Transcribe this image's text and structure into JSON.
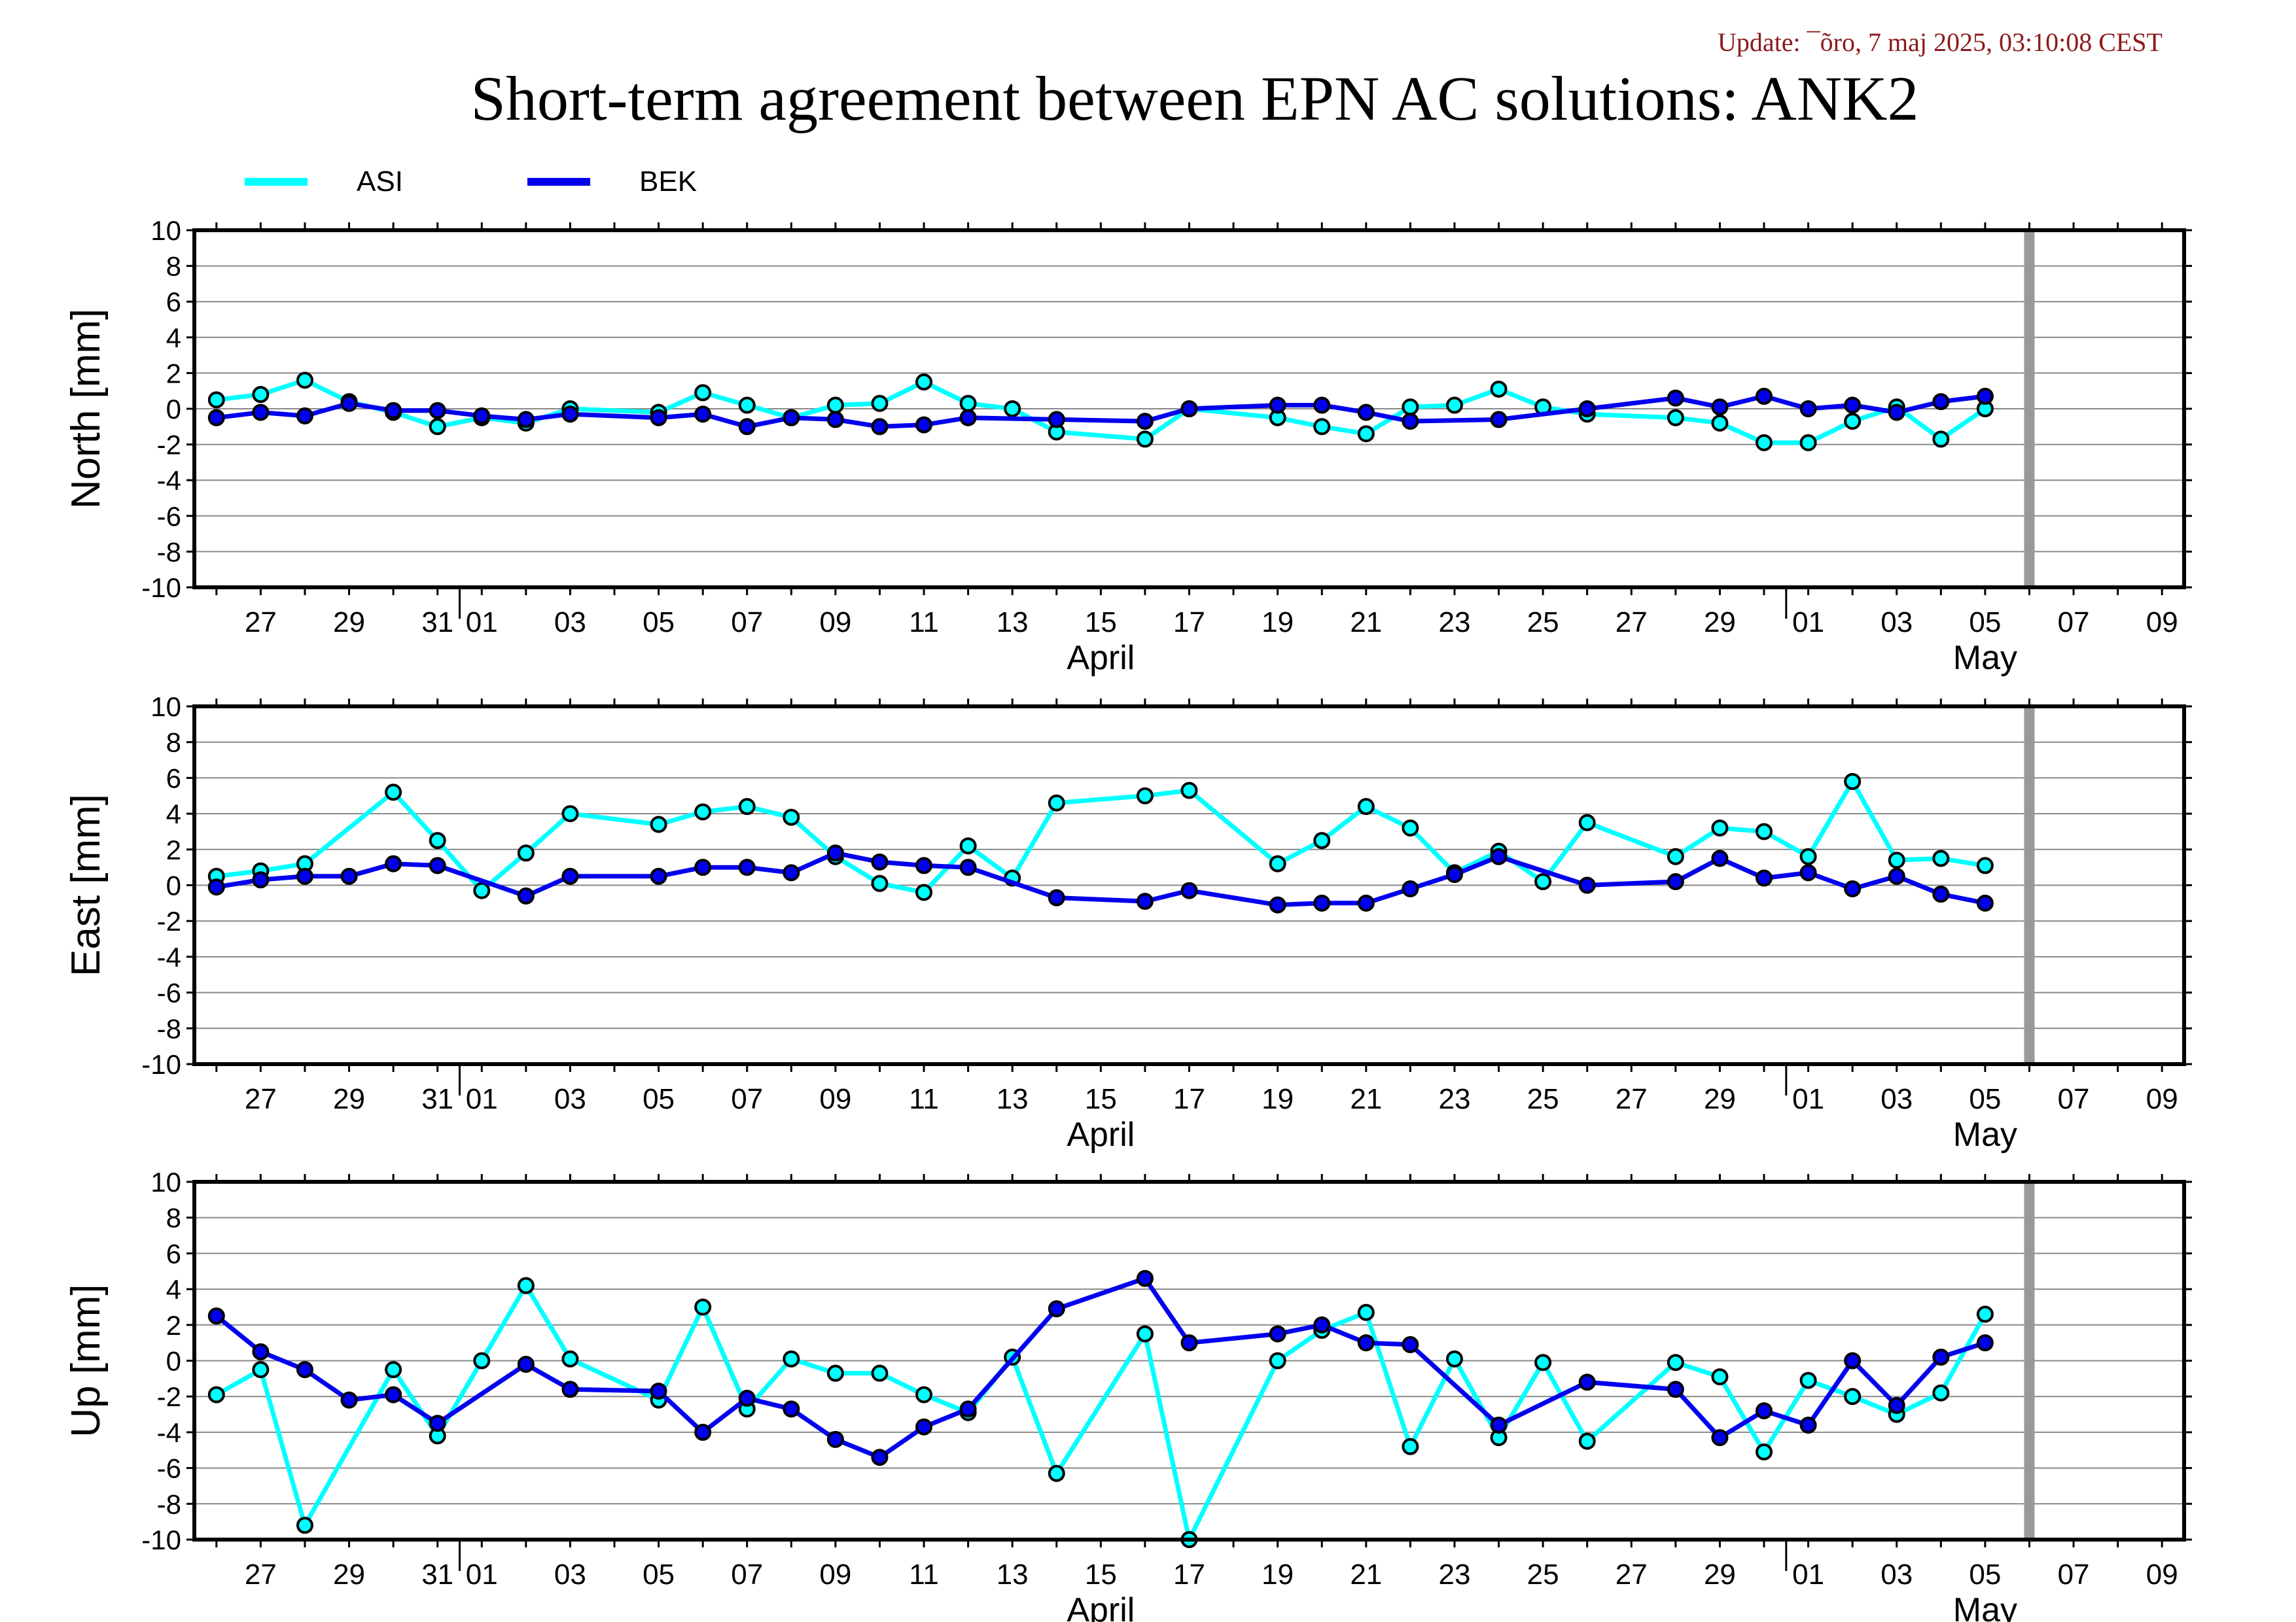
{
  "header": {
    "update": "Update: ¯õro, 7 maj 2025, 03:10:08 CEST",
    "title": "Short-term agreement between EPN AC solutions: ANK2"
  },
  "legend": [
    {
      "name": "ASI",
      "color": "#00ffff"
    },
    {
      "name": "BEK",
      "color": "#0000ee"
    }
  ],
  "colors": {
    "update_text": "#8b1a1a",
    "gray_marker": "#999999",
    "grid": "#888888"
  },
  "chart_data": [
    {
      "type": "line",
      "ylabel": "North [mm]",
      "ylim": [
        -10,
        10
      ],
      "yticks": [
        10,
        8,
        6,
        4,
        2,
        0,
        -2,
        -4,
        -6,
        -8,
        -10
      ],
      "xlim": [
        "2025-03-25T12:00",
        "2025-05-09T12:00"
      ],
      "gray_marker": "2025-05-06",
      "series": [
        {
          "name": "ASI",
          "x": [
            "2025-03-26",
            "2025-03-27",
            "2025-03-28",
            "2025-03-29",
            "2025-03-30",
            "2025-03-31",
            "2025-04-01",
            "2025-04-02",
            "2025-04-03",
            "2025-04-05",
            "2025-04-06",
            "2025-04-07",
            "2025-04-08",
            "2025-04-09",
            "2025-04-10",
            "2025-04-11",
            "2025-04-12",
            "2025-04-13",
            "2025-04-14",
            "2025-04-16",
            "2025-04-17",
            "2025-04-19",
            "2025-04-20",
            "2025-04-21",
            "2025-04-22",
            "2025-04-23",
            "2025-04-24",
            "2025-04-25",
            "2025-04-26",
            "2025-04-28",
            "2025-04-29",
            "2025-04-30",
            "2025-05-01",
            "2025-05-02",
            "2025-05-03",
            "2025-05-04",
            "2025-05-05"
          ],
          "values": [
            0.5,
            0.8,
            1.6,
            0.4,
            -0.2,
            -1.0,
            -0.5,
            -0.8,
            0.0,
            -0.2,
            0.9,
            0.2,
            -0.5,
            0.2,
            0.3,
            1.5,
            0.3,
            0.0,
            -1.3,
            -1.7,
            0.0,
            -0.5,
            -1.0,
            -1.4,
            0.1,
            0.2,
            1.1,
            0.1,
            -0.3,
            -0.5,
            -0.8,
            -1.9,
            -1.9,
            -0.7,
            0.1,
            -1.7,
            0.0
          ]
        },
        {
          "name": "BEK",
          "x": [
            "2025-03-26",
            "2025-03-27",
            "2025-03-28",
            "2025-03-29",
            "2025-03-30",
            "2025-03-31",
            "2025-04-01",
            "2025-04-02",
            "2025-04-03",
            "2025-04-05",
            "2025-04-06",
            "2025-04-07",
            "2025-04-08",
            "2025-04-09",
            "2025-04-10",
            "2025-04-11",
            "2025-04-12",
            "2025-04-14",
            "2025-04-16",
            "2025-04-17",
            "2025-04-19",
            "2025-04-20",
            "2025-04-21",
            "2025-04-22",
            "2025-04-24",
            "2025-04-26",
            "2025-04-28",
            "2025-04-29",
            "2025-04-30",
            "2025-05-01",
            "2025-05-02",
            "2025-05-03",
            "2025-05-04",
            "2025-05-05"
          ],
          "values": [
            -0.5,
            -0.2,
            -0.4,
            0.3,
            -0.1,
            -0.1,
            -0.4,
            -0.6,
            -0.3,
            -0.5,
            -0.3,
            -1.0,
            -0.5,
            -0.6,
            -1.0,
            -0.9,
            -0.5,
            -0.6,
            -0.7,
            0.0,
            0.2,
            0.2,
            -0.2,
            -0.7,
            -0.6,
            0.0,
            0.6,
            0.1,
            0.7,
            0.0,
            0.2,
            -0.2,
            0.4,
            0.7
          ]
        }
      ]
    },
    {
      "type": "line",
      "ylabel": "East [mm]",
      "ylim": [
        -10,
        10
      ],
      "yticks": [
        10,
        8,
        6,
        4,
        2,
        0,
        -2,
        -4,
        -6,
        -8,
        -10
      ],
      "xlim": [
        "2025-03-25T12:00",
        "2025-05-09T12:00"
      ],
      "gray_marker": "2025-05-06",
      "series": [
        {
          "name": "ASI",
          "x": [
            "2025-03-26",
            "2025-03-27",
            "2025-03-28",
            "2025-03-30",
            "2025-03-31",
            "2025-04-01",
            "2025-04-02",
            "2025-04-03",
            "2025-04-05",
            "2025-04-06",
            "2025-04-07",
            "2025-04-08",
            "2025-04-09",
            "2025-04-10",
            "2025-04-11",
            "2025-04-12",
            "2025-04-13",
            "2025-04-14",
            "2025-04-16",
            "2025-04-17",
            "2025-04-19",
            "2025-04-20",
            "2025-04-21",
            "2025-04-22",
            "2025-04-23",
            "2025-04-24",
            "2025-04-25",
            "2025-04-26",
            "2025-04-28",
            "2025-04-29",
            "2025-04-30",
            "2025-05-01",
            "2025-05-02",
            "2025-05-03",
            "2025-05-04",
            "2025-05-05"
          ],
          "values": [
            0.5,
            0.8,
            1.2,
            5.2,
            2.5,
            -0.3,
            1.8,
            4.0,
            3.4,
            4.1,
            4.4,
            3.8,
            1.6,
            0.1,
            -0.4,
            2.2,
            0.4,
            4.6,
            5.0,
            5.3,
            1.2,
            2.5,
            4.4,
            3.2,
            0.7,
            1.9,
            0.2,
            3.5,
            1.6,
            3.2,
            3.0,
            1.6,
            5.8,
            1.4,
            1.5,
            1.1
          ]
        },
        {
          "name": "BEK",
          "x": [
            "2025-03-26",
            "2025-03-27",
            "2025-03-28",
            "2025-03-29",
            "2025-03-30",
            "2025-03-31",
            "2025-04-02",
            "2025-04-03",
            "2025-04-05",
            "2025-04-06",
            "2025-04-07",
            "2025-04-08",
            "2025-04-09",
            "2025-04-10",
            "2025-04-11",
            "2025-04-12",
            "2025-04-14",
            "2025-04-16",
            "2025-04-17",
            "2025-04-19",
            "2025-04-20",
            "2025-04-21",
            "2025-04-22",
            "2025-04-23",
            "2025-04-24",
            "2025-04-26",
            "2025-04-28",
            "2025-04-29",
            "2025-04-30",
            "2025-05-01",
            "2025-05-02",
            "2025-05-03",
            "2025-05-04",
            "2025-05-05"
          ],
          "values": [
            -0.1,
            0.3,
            0.5,
            0.5,
            1.2,
            1.1,
            -0.6,
            0.5,
            0.5,
            1.0,
            1.0,
            0.7,
            1.8,
            1.3,
            1.1,
            1.0,
            -0.7,
            -0.9,
            -0.3,
            -1.1,
            -1.0,
            -1.0,
            -0.2,
            0.6,
            1.6,
            0.0,
            0.2,
            1.5,
            0.4,
            0.7,
            -0.2,
            0.5,
            -0.5,
            -1.0
          ]
        }
      ]
    },
    {
      "type": "line",
      "ylabel": "Up [mm]",
      "ylim": [
        -10,
        10
      ],
      "yticks": [
        10,
        8,
        6,
        4,
        2,
        0,
        -2,
        -4,
        -6,
        -8,
        -10
      ],
      "xlim": [
        "2025-03-25T12:00",
        "2025-05-09T12:00"
      ],
      "gray_marker": "2025-05-06",
      "series": [
        {
          "name": "ASI",
          "x": [
            "2025-03-26",
            "2025-03-27",
            "2025-03-28",
            "2025-03-30",
            "2025-03-31",
            "2025-04-01",
            "2025-04-02",
            "2025-04-03",
            "2025-04-05",
            "2025-04-06",
            "2025-04-07",
            "2025-04-08",
            "2025-04-09",
            "2025-04-10",
            "2025-04-11",
            "2025-04-12",
            "2025-04-13",
            "2025-04-14",
            "2025-04-16",
            "2025-04-17",
            "2025-04-19",
            "2025-04-20",
            "2025-04-21",
            "2025-04-22",
            "2025-04-23",
            "2025-04-24",
            "2025-04-25",
            "2025-04-26",
            "2025-04-28",
            "2025-04-29",
            "2025-04-30",
            "2025-05-01",
            "2025-05-02",
            "2025-05-03",
            "2025-05-04",
            "2025-05-05"
          ],
          "values": [
            -1.9,
            -0.5,
            -9.2,
            -0.5,
            -4.2,
            0.0,
            4.2,
            0.1,
            -2.2,
            3.0,
            -2.7,
            0.1,
            -0.7,
            -0.7,
            -1.9,
            -2.9,
            0.2,
            -6.3,
            1.5,
            -10.0,
            0.0,
            1.7,
            2.7,
            -4.8,
            0.1,
            -4.3,
            -0.1,
            -4.5,
            -0.1,
            -0.9,
            -5.1,
            -1.1,
            -2.0,
            -3.0,
            -1.8,
            2.6
          ]
        },
        {
          "name": "BEK",
          "x": [
            "2025-03-26",
            "2025-03-27",
            "2025-03-28",
            "2025-03-29",
            "2025-03-30",
            "2025-03-31",
            "2025-04-02",
            "2025-04-03",
            "2025-04-05",
            "2025-04-06",
            "2025-04-07",
            "2025-04-08",
            "2025-04-09",
            "2025-04-10",
            "2025-04-11",
            "2025-04-12",
            "2025-04-14",
            "2025-04-16",
            "2025-04-17",
            "2025-04-19",
            "2025-04-20",
            "2025-04-21",
            "2025-04-22",
            "2025-04-24",
            "2025-04-26",
            "2025-04-28",
            "2025-04-29",
            "2025-04-30",
            "2025-05-01",
            "2025-05-02",
            "2025-05-03",
            "2025-05-04",
            "2025-05-05"
          ],
          "values": [
            2.5,
            0.5,
            -0.5,
            -2.2,
            -1.9,
            -3.5,
            -0.2,
            -1.6,
            -1.7,
            -4.0,
            -2.1,
            -2.7,
            -4.4,
            -5.4,
            -3.7,
            -2.7,
            2.9,
            4.6,
            1.0,
            1.5,
            2.0,
            1.0,
            0.9,
            -3.6,
            -1.2,
            -1.6,
            -4.3,
            -2.8,
            -3.6,
            0.0,
            -2.5,
            0.2,
            1.0
          ]
        }
      ]
    }
  ],
  "x_axis": {
    "tick_labels": [
      {
        "date": "2025-03-27",
        "label": "27"
      },
      {
        "date": "2025-03-29",
        "label": "29"
      },
      {
        "date": "2025-03-31",
        "label": "31"
      },
      {
        "date": "2025-04-01",
        "label": "01"
      },
      {
        "date": "2025-04-03",
        "label": "03"
      },
      {
        "date": "2025-04-05",
        "label": "05"
      },
      {
        "date": "2025-04-07",
        "label": "07"
      },
      {
        "date": "2025-04-09",
        "label": "09"
      },
      {
        "date": "2025-04-11",
        "label": "11"
      },
      {
        "date": "2025-04-13",
        "label": "13"
      },
      {
        "date": "2025-04-15",
        "label": "15"
      },
      {
        "date": "2025-04-17",
        "label": "17"
      },
      {
        "date": "2025-04-19",
        "label": "19"
      },
      {
        "date": "2025-04-21",
        "label": "21"
      },
      {
        "date": "2025-04-23",
        "label": "23"
      },
      {
        "date": "2025-04-25",
        "label": "25"
      },
      {
        "date": "2025-04-27",
        "label": "27"
      },
      {
        "date": "2025-04-29",
        "label": "29"
      },
      {
        "date": "2025-05-01",
        "label": "01"
      },
      {
        "date": "2025-05-03",
        "label": "03"
      },
      {
        "date": "2025-05-05",
        "label": "05"
      },
      {
        "date": "2025-05-07",
        "label": "07"
      },
      {
        "date": "2025-05-09",
        "label": "09"
      }
    ],
    "month_labels": [
      {
        "date": "2025-04-15",
        "label": "April"
      },
      {
        "date": "2025-05-05",
        "label": "May"
      }
    ],
    "month_boundaries": [
      "2025-04-01",
      "2025-05-01"
    ]
  }
}
